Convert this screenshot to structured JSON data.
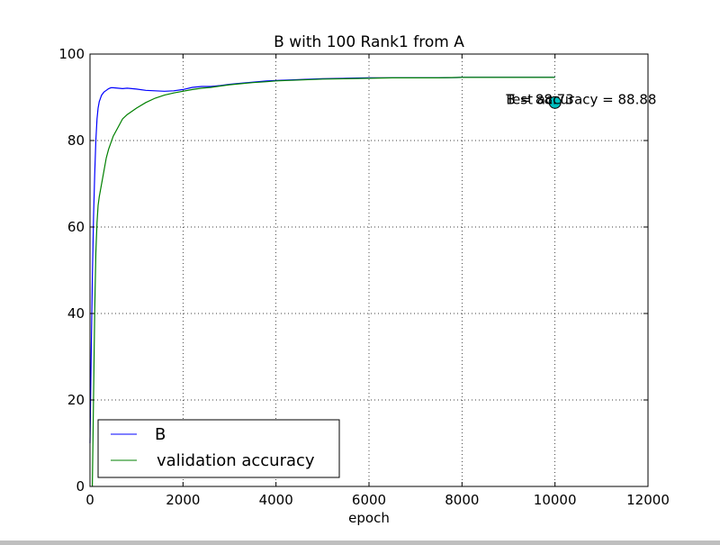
{
  "chart_data": {
    "type": "line",
    "title": "B with 100 Rank1 from A",
    "xlabel": "epoch",
    "ylabel": "",
    "xlim": [
      0,
      12000
    ],
    "ylim": [
      0,
      100
    ],
    "xticks": [
      0,
      2000,
      4000,
      6000,
      8000,
      10000,
      12000
    ],
    "yticks": [
      0,
      20,
      40,
      60,
      80,
      100
    ],
    "grid": true,
    "legend_position": "lower-left",
    "series": [
      {
        "name": "B",
        "color": "#0000ff",
        "x": [
          0,
          25,
          50,
          75,
          100,
          125,
          150,
          175,
          200,
          250,
          300,
          350,
          400,
          450,
          500,
          600,
          700,
          800,
          1000,
          1200,
          1400,
          1600,
          1800,
          2000,
          2200,
          2400,
          2600,
          2800,
          3000,
          3200,
          3500,
          3800,
          4000,
          4500,
          5000,
          5500,
          6000,
          6500,
          7000,
          7500,
          8000,
          8500,
          9000,
          9500,
          10000
        ],
        "y": [
          10,
          30,
          48,
          62,
          72,
          80,
          85,
          87.5,
          89,
          90.5,
          91.2,
          91.6,
          92,
          92.2,
          92.2,
          92.1,
          92,
          92.1,
          91.9,
          91.6,
          91.5,
          91.4,
          91.5,
          91.8,
          92.3,
          92.5,
          92.5,
          92.7,
          93,
          93.2,
          93.5,
          93.8,
          93.9,
          94.1,
          94.3,
          94.4,
          94.5,
          94.5,
          94.5,
          94.5,
          94.6,
          94.6,
          94.6,
          94.6,
          94.6
        ]
      },
      {
        "name": "validation accuracy",
        "color": "#008000",
        "x": [
          50,
          75,
          100,
          125,
          150,
          175,
          200,
          250,
          300,
          350,
          400,
          500,
          600,
          700,
          800,
          1000,
          1200,
          1400,
          1600,
          1800,
          2000,
          2200,
          2400,
          2600,
          2800,
          3000,
          3200,
          3500,
          3800,
          4000,
          4500,
          5000,
          5500,
          6000,
          6500,
          7000,
          7500,
          8000,
          8500,
          9000,
          9500,
          10000
        ],
        "y": [
          0,
          20,
          40,
          54,
          61,
          65,
          67,
          70,
          73,
          76,
          78,
          81,
          83,
          85,
          86,
          87.5,
          88.8,
          89.8,
          90.5,
          91,
          91.4,
          91.8,
          92.1,
          92.3,
          92.6,
          92.9,
          93.1,
          93.4,
          93.6,
          93.8,
          94,
          94.2,
          94.3,
          94.4,
          94.5,
          94.5,
          94.5,
          94.6,
          94.6,
          94.6,
          94.6,
          94.6
        ]
      }
    ],
    "marker": {
      "x": 10000,
      "y": 88.8,
      "color": "#00bfbf"
    },
    "annotations": [
      {
        "text": "B = 88.73",
        "x": 8950,
        "y": 89.5
      },
      {
        "text": "Test accuracy = 88.88",
        "x": 8950,
        "y": 89.5
      }
    ]
  }
}
